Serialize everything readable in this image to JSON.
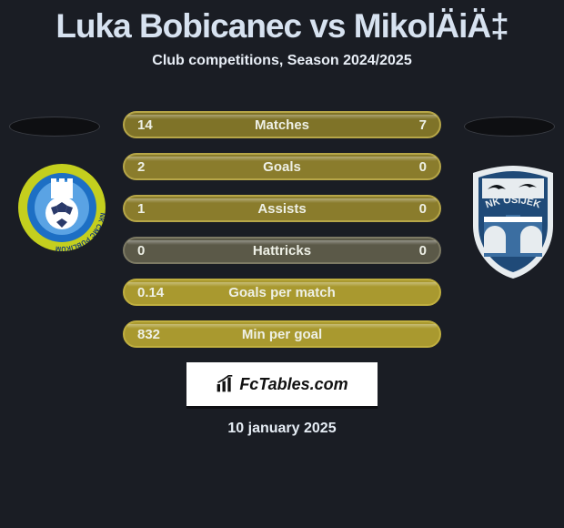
{
  "title": {
    "text": "Luka Bobicanec vs MikolÄiÄ‡",
    "color": "#d7e2f0",
    "fontsize": 37
  },
  "subtitle": {
    "text": "Club competitions, Season 2024/2025",
    "color": "#e8eef6",
    "fontsize": 16
  },
  "background_color": "#1a1d24",
  "rows": [
    {
      "left": "14",
      "label": "Matches",
      "right": "7",
      "bg": "#7f7328",
      "border": "#b6a648"
    },
    {
      "left": "2",
      "label": "Goals",
      "right": "0",
      "bg": "#8a7c2c",
      "border": "#b6a648"
    },
    {
      "left": "1",
      "label": "Assists",
      "right": "0",
      "bg": "#8a7c2c",
      "border": "#b6a648"
    },
    {
      "left": "0",
      "label": "Hattricks",
      "right": "0",
      "bg": "#5b5948",
      "border": "#7d7a64"
    },
    {
      "left": "0.14",
      "label": "Goals per match",
      "right": "",
      "bg": "#a9992f",
      "border": "#c0af3f"
    },
    {
      "left": "832",
      "label": "Min per goal",
      "right": "",
      "bg": "#a9992f",
      "border": "#c0af3f"
    }
  ],
  "row_text_color": "#eef0e6",
  "row_fontsize": 15,
  "logos": {
    "left": {
      "primary": "#c4cf1e",
      "secondary": "#1d6fc4",
      "inner": "#5aa3e4",
      "text": "NK CMC PUBLIKUM",
      "text_color": "#153a7a"
    },
    "right": {
      "primary": "#e7ecef",
      "secondary": "#1f4a78",
      "inner": "#3b6ea1",
      "text": "NK OSIJEK",
      "text_color": "#0f2a4a"
    }
  },
  "fctables": {
    "label": "FcTables.com",
    "color": "#111111"
  },
  "date": {
    "text": "10 january 2025",
    "color": "#e6edf5",
    "fontsize": 16
  }
}
